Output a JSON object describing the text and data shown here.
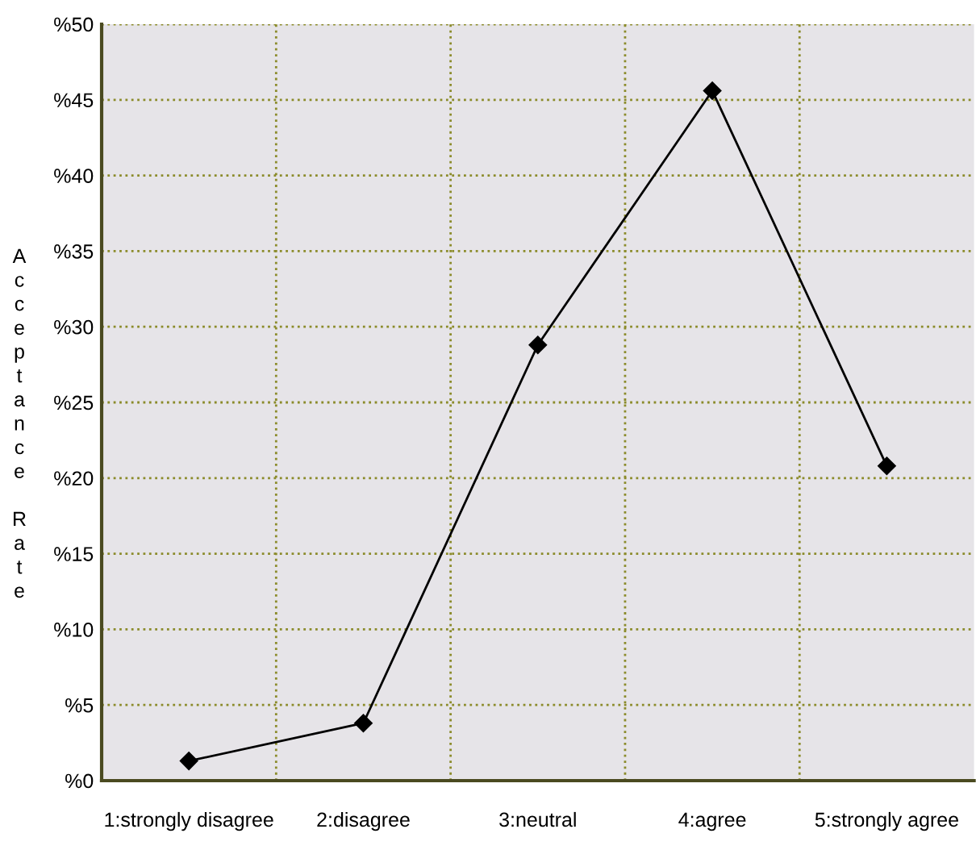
{
  "chart_data": {
    "type": "line",
    "ylabel": "Acceptance Rate",
    "categories": [
      "1:strongly disagree",
      "2:disagree",
      "3:neutral",
      "4:agree",
      "5:strongly agree"
    ],
    "series": [
      {
        "color": "#000000",
        "values": [
          1.3,
          3.8,
          28.8,
          45.6,
          20.8
        ]
      }
    ],
    "ylim": [
      0,
      50
    ],
    "yticks": [
      {
        "value": 0,
        "label": "%0"
      },
      {
        "value": 5,
        "label": "%5"
      },
      {
        "value": 10,
        "label": "%10"
      },
      {
        "value": 15,
        "label": "%15"
      },
      {
        "value": 20,
        "label": "%20"
      },
      {
        "value": 25,
        "label": "%25"
      },
      {
        "value": 30,
        "label": "%30"
      },
      {
        "value": 35,
        "label": "%35"
      },
      {
        "value": 40,
        "label": "%40"
      },
      {
        "value": 45,
        "label": "%45"
      },
      {
        "value": 50,
        "label": "%50"
      }
    ],
    "grid": true,
    "marker": "diamond",
    "line_style": "solid"
  }
}
